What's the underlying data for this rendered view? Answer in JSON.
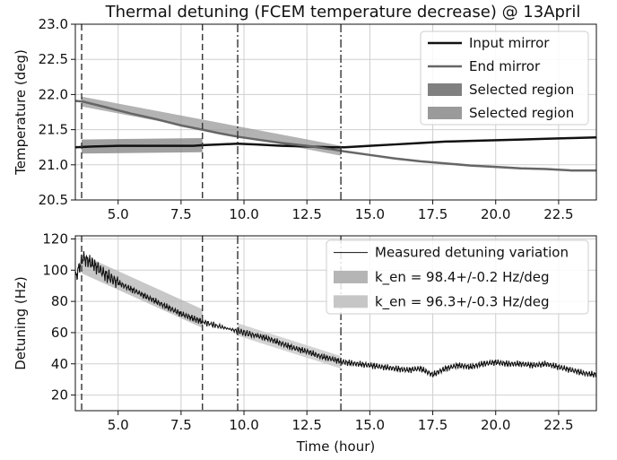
{
  "chart_data": [
    {
      "type": "line",
      "title": "Thermal detuning (FCEM temperature decrease) @ 13April",
      "xlabel": "",
      "ylabel": "Temperature (deg)",
      "xlim": [
        3.3,
        24.0
      ],
      "ylim": [
        20.5,
        23.0
      ],
      "xticks": [
        "5.0",
        "7.5",
        "10.0",
        "12.5",
        "15.0",
        "17.5",
        "20.0",
        "22.5"
      ],
      "yticks": [
        "20.5",
        "21.0",
        "21.5",
        "22.0",
        "22.5",
        "23.0"
      ],
      "grid": true,
      "legend_position": "top-right",
      "vlines": [
        {
          "x": 3.55,
          "style": "dashed"
        },
        {
          "x": 8.35,
          "style": "dashed"
        },
        {
          "x": 9.75,
          "style": "dashdot"
        },
        {
          "x": 13.85,
          "style": "dashdot"
        }
      ],
      "series": [
        {
          "name": "Input mirror",
          "color": "#111111",
          "x": [
            3.3,
            4.0,
            5.0,
            6.0,
            7.0,
            8.0,
            8.35,
            9.0,
            9.75,
            10.5,
            11.5,
            12.5,
            13.5,
            14.0,
            15.0,
            16.0,
            17.0,
            18.0,
            19.0,
            20.0,
            21.0,
            22.0,
            23.0,
            24.0
          ],
          "y": [
            21.25,
            21.26,
            21.27,
            21.27,
            21.27,
            21.27,
            21.28,
            21.29,
            21.3,
            21.29,
            21.27,
            21.26,
            21.25,
            21.25,
            21.27,
            21.29,
            21.31,
            21.33,
            21.34,
            21.35,
            21.36,
            21.37,
            21.38,
            21.39
          ]
        },
        {
          "name": "End mirror",
          "color": "#666666",
          "x": [
            3.3,
            3.6,
            4.5,
            5.5,
            6.5,
            7.5,
            8.35,
            9.0,
            9.75,
            10.5,
            11.5,
            12.5,
            13.5,
            14.0,
            15.0,
            16.0,
            17.0,
            18.0,
            19.0,
            20.0,
            21.0,
            22.0,
            23.0,
            24.0
          ],
          "y": [
            21.91,
            21.9,
            21.82,
            21.73,
            21.65,
            21.56,
            21.5,
            21.45,
            21.4,
            21.36,
            21.31,
            21.27,
            21.22,
            21.19,
            21.14,
            21.09,
            21.05,
            21.02,
            20.99,
            20.97,
            20.95,
            20.94,
            20.92,
            20.92
          ]
        },
        {
          "name": "Selected region",
          "color": "#808080",
          "band": true,
          "x": [
            3.55,
            8.35
          ],
          "y": [
            21.26,
            21.28
          ],
          "halfwidth": 0.1
        },
        {
          "name": "Selected region",
          "color": "#9a9a9a",
          "band": true,
          "x": [
            3.55,
            13.85
          ],
          "y": [
            21.9,
            21.2
          ],
          "halfwidth": 0.07
        }
      ]
    },
    {
      "type": "line",
      "title": "",
      "xlabel": "Time (hour)",
      "ylabel": "Detuning (Hz)",
      "xlim": [
        3.3,
        24.0
      ],
      "ylim": [
        10,
        122
      ],
      "xticks": [
        "5.0",
        "7.5",
        "10.0",
        "12.5",
        "15.0",
        "17.5",
        "20.0",
        "22.5"
      ],
      "yticks": [
        "20",
        "40",
        "60",
        "80",
        "100",
        "120"
      ],
      "grid": true,
      "legend_position": "top-right",
      "vlines": [
        {
          "x": 3.55,
          "style": "dashed"
        },
        {
          "x": 8.35,
          "style": "dashed"
        },
        {
          "x": 9.75,
          "style": "dashdot"
        },
        {
          "x": 13.85,
          "style": "dashdot"
        }
      ],
      "series": [
        {
          "name": "Measured detuning variation",
          "color": "#111111",
          "x": [
            3.3,
            3.6,
            4.0,
            4.5,
            5.0,
            5.5,
            6.0,
            6.5,
            7.0,
            7.5,
            8.0,
            8.35,
            9.0,
            9.75,
            10.5,
            11.0,
            11.5,
            12.0,
            12.5,
            13.0,
            13.5,
            14.0,
            14.5,
            15.0,
            15.5,
            16.0,
            16.5,
            17.0,
            17.5,
            18.0,
            18.5,
            19.0,
            19.5,
            20.0,
            20.5,
            21.0,
            21.5,
            22.0,
            22.5,
            23.0,
            23.5,
            24.0
          ],
          "y": [
            95,
            108,
            104,
            97,
            92,
            88,
            84,
            80,
            76,
            72,
            69,
            67,
            64,
            61,
            58,
            56,
            53,
            50,
            48,
            45,
            43,
            41,
            40,
            39,
            38,
            37,
            36,
            37,
            33,
            37,
            39,
            38,
            40,
            41,
            40,
            40,
            39,
            40,
            38,
            36,
            34,
            33
          ]
        },
        {
          "name": "k_en = 98.4+/-0.2 Hz/deg",
          "color": "#b5b5b5",
          "band": true,
          "x": [
            3.55,
            8.35
          ],
          "y": [
            104,
            69
          ],
          "halfwidth": 6
        },
        {
          "name": "k_en = 96.3+/-0.3 Hz/deg",
          "color": "#c6c6c6",
          "band": true,
          "x": [
            9.75,
            13.85
          ],
          "y": [
            62,
            41
          ],
          "halfwidth": 4
        }
      ]
    }
  ]
}
